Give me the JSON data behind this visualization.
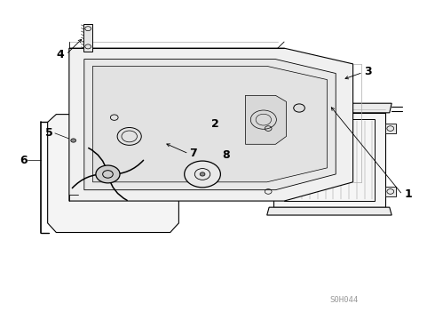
{
  "bg_color": "#ffffff",
  "line_color": "#000000",
  "watermark": "S0H044",
  "figsize": [
    4.9,
    3.6
  ],
  "dpi": 100
}
